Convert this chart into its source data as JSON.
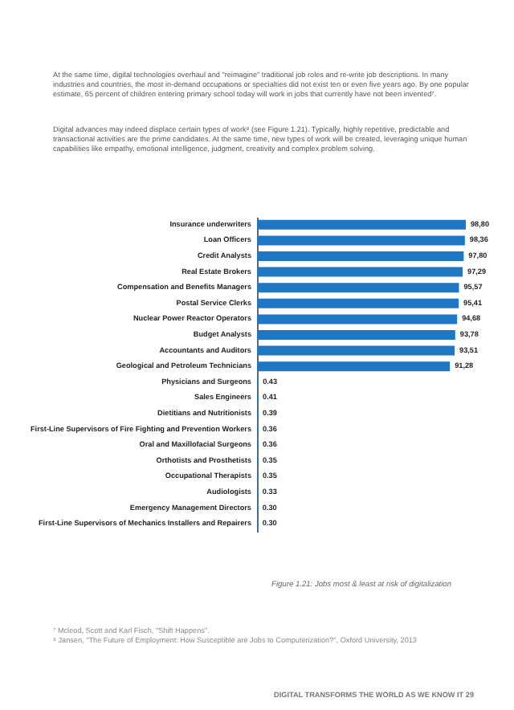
{
  "chart_data": {
    "type": "bar",
    "orientation": "horizontal",
    "title": "Figure 1.21: Jobs most & least at risk of digitalization",
    "annotations": [
      "At the same time, digital technologies overhaul and \"reimagine\" traditional job roles and re-write job descriptions. In many industries and countries, the most in-demand occupations or specialties did not exist ten or even five years ago. By one popular estimate, 65 percent of children entering primary school today will work in jobs that currently have not been invented⁷.",
      "Digital advances may indeed displace certain types of work⁸ (see Figure 1.21). Typically, highly repetitive, predictable and transactional activities are the prime candidates. At the same time, new types of work will be created, leveraging unique human capabilities like empathy, emotional intelligence, judgment, creativity and complex problem solving.",
      "⁷ Mcleod, Scott and Karl Fisch, \"Shift Happens\".",
      "⁸ Jansen, \"The Future of Employment: How Susceptible are Jobs to Computerization?\", Oxford University, 2013",
      "DIGITAL TRANSFORMS THE WORLD AS WE KNOW IT   29"
    ],
    "categories": [
      "Insurance underwriters",
      "Loan Officers",
      "Credit Analysts",
      "Real Estate Brokers",
      "Compensation and Benefits Managers",
      "Postal Service Clerks",
      "Nuclear Power Reactor Operators",
      "Budget Analysts",
      "Accountants and Auditors",
      "Geological and Petroleum Technicians",
      "Physicians and Surgeons",
      "Sales Engineers",
      "Dietitians and Nutritionists",
      "First-Line Supervisors of Fire Fighting and Prevention Workers",
      "Oral and Maxillofacial Surgeons",
      "Orthotists and Prosthetists",
      "Occupational Therapists",
      "Audiologists",
      "Emergency Management Directors",
      "First-Line Supervisors of Mechanics Installers and Repairers"
    ],
    "values": [
      98.8,
      98.36,
      97.8,
      97.29,
      95.57,
      95.41,
      94.68,
      93.78,
      93.51,
      91.28,
      0.43,
      0.41,
      0.39,
      0.36,
      0.36,
      0.35,
      0.35,
      0.33,
      0.3,
      0.3
    ],
    "value_labels": [
      "98,80",
      "98,36",
      "97,80",
      "97,29",
      "95,57",
      "95,41",
      "94,68",
      "93,78",
      "93,51",
      "91,28",
      "0.43",
      "0.41",
      "0.39",
      "0.36",
      "0.36",
      "0.35",
      "0.35",
      "0.33",
      "0.30",
      "0.30"
    ],
    "color": "#1f77c4",
    "grid": false
  }
}
